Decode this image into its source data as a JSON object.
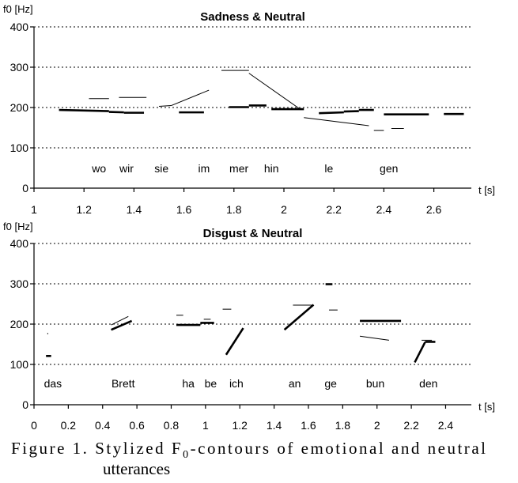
{
  "chart_data": [
    {
      "type": "line",
      "title": "Sadness & Neutral",
      "ylabel": "f0 [Hz]",
      "xlabel": "t [s]",
      "xlim": [
        1,
        2.75
      ],
      "ylim": [
        0,
        400
      ],
      "xticks": [
        "1",
        "1.2",
        "1.4",
        "1.6",
        "1.8",
        "2",
        "2.2",
        "2.4",
        "2.6"
      ],
      "xtick_values": [
        1,
        1.2,
        1.4,
        1.6,
        1.8,
        2,
        2.2,
        2.4,
        2.6
      ],
      "yticks": [
        "0",
        "100",
        "200",
        "300",
        "400"
      ],
      "ytick_values": [
        0,
        100,
        200,
        300,
        400
      ],
      "grid": "horizontal dashed at 100, 200, 300, 400",
      "syllables": [
        {
          "text": "wo",
          "x": 1.26
        },
        {
          "text": "wir",
          "x": 1.37
        },
        {
          "text": "sie",
          "x": 1.51
        },
        {
          "text": "im",
          "x": 1.68
        },
        {
          "text": "mer",
          "x": 1.82
        },
        {
          "text": "hin",
          "x": 1.95
        },
        {
          "text": "le",
          "x": 2.18
        },
        {
          "text": "gen",
          "x": 2.42
        }
      ],
      "series": [
        {
          "style": "thick",
          "segments": [
            [
              [
                1.1,
                194
              ],
              [
                1.3,
                191
              ]
            ],
            [
              [
                1.3,
                189
              ],
              [
                1.36,
                188
              ]
            ],
            [
              [
                1.36,
                187
              ],
              [
                1.44,
                187
              ]
            ],
            [
              [
                1.58,
                188
              ],
              [
                1.68,
                188
              ]
            ],
            [
              [
                1.78,
                201
              ],
              [
                1.86,
                201
              ]
            ],
            [
              [
                1.86,
                205
              ],
              [
                1.93,
                205
              ]
            ],
            [
              [
                1.95,
                196
              ],
              [
                2.08,
                196
              ]
            ],
            [
              [
                2.14,
                186
              ],
              [
                2.24,
                188
              ]
            ],
            [
              [
                2.24,
                190
              ],
              [
                2.3,
                191
              ]
            ],
            [
              [
                2.3,
                194
              ],
              [
                2.36,
                194
              ]
            ],
            [
              [
                2.4,
                183
              ],
              [
                2.58,
                183
              ]
            ],
            [
              [
                2.64,
                184
              ],
              [
                2.72,
                184
              ]
            ]
          ]
        },
        {
          "style": "thin",
          "segments": [
            [
              [
                1.22,
                222
              ],
              [
                1.3,
                222
              ]
            ],
            [
              [
                1.34,
                225
              ],
              [
                1.45,
                225
              ]
            ],
            [
              [
                1.5,
                203
              ],
              [
                1.55,
                205
              ]
            ],
            [
              [
                1.55,
                205
              ],
              [
                1.7,
                243
              ]
            ],
            [
              [
                1.75,
                292
              ],
              [
                1.86,
                292
              ]
            ],
            [
              [
                1.86,
                285
              ],
              [
                2.06,
                198
              ]
            ],
            [
              [
                2.08,
                175
              ],
              [
                2.34,
                155
              ]
            ],
            [
              [
                2.36,
                143
              ],
              [
                2.4,
                143
              ]
            ],
            [
              [
                2.43,
                148
              ],
              [
                2.48,
                148
              ]
            ]
          ]
        }
      ]
    },
    {
      "type": "line",
      "title": "Disgust & Neutral",
      "ylabel": "f0 [Hz]",
      "xlabel": "t [s]",
      "xlim": [
        0,
        2.55
      ],
      "ylim": [
        0,
        400
      ],
      "xticks": [
        "0",
        "0.2",
        "0.4",
        "0.6",
        "0.8",
        "1",
        "1.2",
        "1.4",
        "1.6",
        "1.8",
        "2",
        "2.2",
        "2.4"
      ],
      "xtick_values": [
        0,
        0.2,
        0.4,
        0.6,
        0.8,
        1,
        1.2,
        1.4,
        1.6,
        1.8,
        2,
        2.2,
        2.4
      ],
      "yticks": [
        "0",
        "100",
        "200",
        "300",
        "400"
      ],
      "ytick_values": [
        0,
        100,
        200,
        300,
        400
      ],
      "grid": "horizontal dashed at 100, 200, 300, 400",
      "syllables": [
        {
          "text": "das",
          "x": 0.11
        },
        {
          "text": "Brett",
          "x": 0.52
        },
        {
          "text": "ha",
          "x": 0.9
        },
        {
          "text": "be",
          "x": 1.03
        },
        {
          "text": "ich",
          "x": 1.18
        },
        {
          "text": "an",
          "x": 1.52
        },
        {
          "text": "ge",
          "x": 1.73
        },
        {
          "text": "bun",
          "x": 1.99
        },
        {
          "text": "den",
          "x": 2.3
        }
      ],
      "series": [
        {
          "style": "thick",
          "segments": [
            [
              [
                0.07,
                121
              ],
              [
                0.1,
                121
              ]
            ],
            [
              [
                0.45,
                186
              ],
              [
                0.57,
                208
              ]
            ],
            [
              [
                0.83,
                198
              ],
              [
                0.97,
                198
              ]
            ],
            [
              [
                0.97,
                203
              ],
              [
                1.05,
                203
              ]
            ],
            [
              [
                1.12,
                124
              ],
              [
                1.22,
                190
              ]
            ],
            [
              [
                1.46,
                186
              ],
              [
                1.63,
                248
              ]
            ],
            [
              [
                1.7,
                299
              ],
              [
                1.74,
                299
              ]
            ],
            [
              [
                1.9,
                208
              ],
              [
                2.14,
                208
              ]
            ],
            [
              [
                2.22,
                105
              ],
              [
                2.28,
                155
              ]
            ],
            [
              [
                2.28,
                156
              ],
              [
                2.34,
                156
              ]
            ]
          ]
        },
        {
          "style": "thin",
          "segments": [
            [
              [
                0.08,
                175
              ],
              [
                0.08,
                178
              ]
            ],
            [
              [
                0.45,
                198
              ],
              [
                0.55,
                219
              ]
            ],
            [
              [
                0.83,
                222
              ],
              [
                0.87,
                222
              ]
            ],
            [
              [
                0.99,
                212
              ],
              [
                1.03,
                212
              ]
            ],
            [
              [
                1.1,
                237
              ],
              [
                1.15,
                237
              ]
            ],
            [
              [
                1.51,
                247
              ],
              [
                1.62,
                247
              ]
            ],
            [
              [
                1.72,
                235
              ],
              [
                1.77,
                235
              ]
            ],
            [
              [
                1.9,
                170
              ],
              [
                2.07,
                160
              ]
            ],
            [
              [
                2.26,
                160
              ],
              [
                2.32,
                160
              ]
            ]
          ]
        }
      ]
    }
  ],
  "caption": {
    "line1": "Figure 1. Stylized F0-contours of emotional and neutral",
    "line1_prefix": "Figure 1. Stylized F",
    "line1_sub": "0",
    "line1_suffix": "-contours of emotional and neutral",
    "line2": "utterances"
  }
}
